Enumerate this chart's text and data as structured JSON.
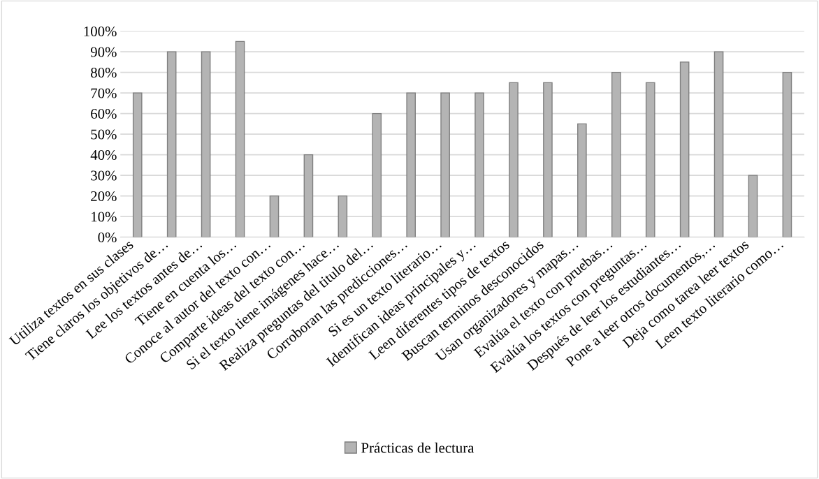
{
  "chart_data": {
    "type": "bar",
    "categories": [
      "Utiliza textos en sus clases",
      "Tiene claros los objetivos de…",
      "Lee los textos antes de…",
      "Tiene en cuenta los…",
      "Conoce al autor del texto con…",
      "Comparte ideas del texto con…",
      "Si el texto tiene imágenes hace…",
      "Realiza preguntas del titulo del…",
      "Corroboran las predicciones…",
      "Si es un texto literario…",
      "Identifican ideas principales y…",
      "Leen diferentes tipos de textos",
      "Buscan terminos desconocidos",
      "Usan organizadores y mapas…",
      "Evalúa el texto con pruebas…",
      "Evalúa los textos con preguntas…",
      "Después de leer los estudiantes…",
      "Pone a leer otros documentos,…",
      "Deja como tarea leer textos",
      "Leen texto literario como…"
    ],
    "series": [
      {
        "name": "Prácticas de lectura",
        "color": "#b4b4b4",
        "values": [
          70,
          90,
          90,
          95,
          20,
          40,
          20,
          60,
          70,
          70,
          70,
          75,
          75,
          55,
          80,
          75,
          85,
          90,
          30,
          80
        ]
      }
    ],
    "ylim": [
      0,
      100
    ],
    "yticks": [
      {
        "value": 0,
        "label": "0%"
      },
      {
        "value": 10,
        "label": "10%"
      },
      {
        "value": 20,
        "label": "20%"
      },
      {
        "value": 30,
        "label": "30%"
      },
      {
        "value": 40,
        "label": "40%"
      },
      {
        "value": 50,
        "label": "50%"
      },
      {
        "value": 60,
        "label": "60%"
      },
      {
        "value": 70,
        "label": "70%"
      },
      {
        "value": 80,
        "label": "80%"
      },
      {
        "value": 90,
        "label": "90%"
      },
      {
        "value": 100,
        "label": "100%"
      }
    ],
    "grid": "y",
    "legend": "bottom"
  }
}
